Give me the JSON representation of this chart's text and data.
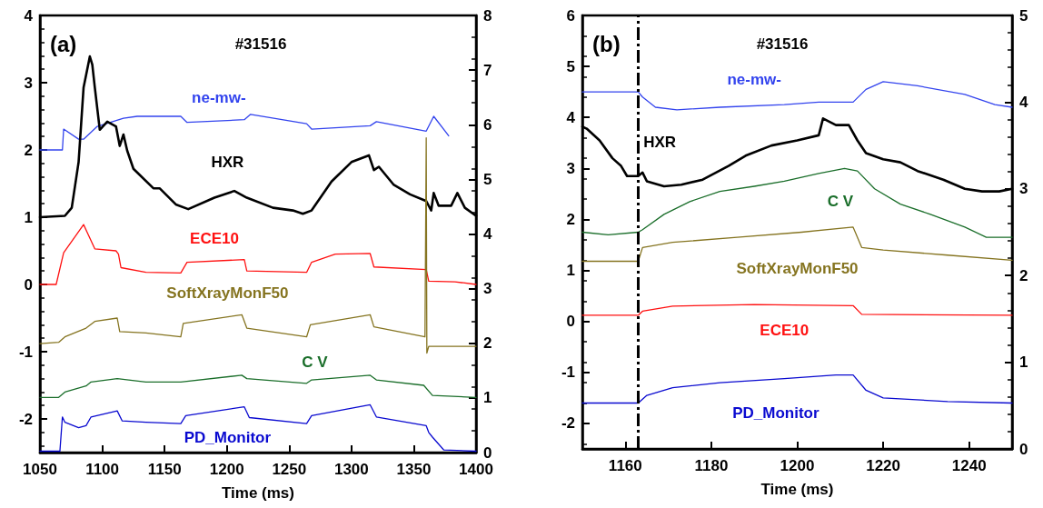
{
  "chart_data": [
    {
      "type": "line",
      "title": "(a)",
      "subtitle": "#31516",
      "xlabel": "Time (ms)",
      "xlim": [
        1050,
        1400
      ],
      "xticks": [
        1050,
        1100,
        1150,
        1200,
        1250,
        1300,
        1350,
        1400
      ],
      "ylim": [
        -2.5,
        4
      ],
      "yticks": [
        -2,
        -1,
        0,
        1,
        2,
        3,
        4
      ],
      "y2lim": [
        0,
        8
      ],
      "y2ticks": [
        0,
        1,
        2,
        3,
        4,
        5,
        6,
        7,
        8
      ],
      "grid": false,
      "legend": false,
      "marker": "none",
      "line_style": "solid",
      "series": [
        {
          "name": "ne-mw-",
          "color": "#3344ee",
          "x": [
            1050,
            1068,
            1069,
            1081,
            1085,
            1096,
            1117,
            1128,
            1163,
            1168,
            1214,
            1219,
            1264,
            1268,
            1315,
            1320,
            1360,
            1366,
            1378
          ],
          "values": [
            2.0,
            2.0,
            2.31,
            2.16,
            2.16,
            2.35,
            2.47,
            2.5,
            2.5,
            2.41,
            2.45,
            2.53,
            2.39,
            2.31,
            2.36,
            2.42,
            2.28,
            2.5,
            2.21
          ]
        },
        {
          "name": "HXR",
          "color": "#000000",
          "x": [
            1050,
            1070,
            1075.5,
            1081,
            1085,
            1090,
            1092,
            1094,
            1098,
            1104,
            1111,
            1114,
            1117,
            1120,
            1125,
            1141,
            1146,
            1159,
            1169,
            1190,
            1206,
            1216,
            1237,
            1253,
            1261,
            1268,
            1284,
            1300,
            1314,
            1318,
            1322,
            1334,
            1347,
            1360,
            1364,
            1366,
            1370,
            1380,
            1385,
            1391,
            1400
          ],
          "values": [
            1.0,
            1.02,
            1.14,
            1.82,
            2.93,
            3.39,
            3.27,
            2.93,
            2.3,
            2.42,
            2.35,
            2.06,
            2.23,
            1.99,
            1.72,
            1.43,
            1.43,
            1.19,
            1.12,
            1.29,
            1.39,
            1.29,
            1.14,
            1.1,
            1.05,
            1.1,
            1.53,
            1.82,
            1.92,
            1.7,
            1.75,
            1.48,
            1.34,
            1.24,
            1.1,
            1.36,
            1.17,
            1.17,
            1.36,
            1.14,
            1.02
          ]
        },
        {
          "name": "ECE10",
          "color": "#ff1010",
          "x": [
            1050,
            1063,
            1069,
            1085,
            1094,
            1111,
            1113,
            1115,
            1135,
            1163,
            1168,
            1214,
            1216,
            1264,
            1268,
            1287,
            1315,
            1318,
            1360,
            1362,
            1383,
            1400
          ],
          "values": [
            0,
            0,
            0.47,
            0.89,
            0.53,
            0.5,
            0.45,
            0.25,
            0.18,
            0.17,
            0.33,
            0.37,
            0.2,
            0.18,
            0.33,
            0.45,
            0.46,
            0.26,
            0.22,
            0.05,
            0.04,
            0
          ]
        },
        {
          "name": "SoftXrayMonF50",
          "color": "#857420",
          "x": [
            1050,
            1065,
            1070,
            1087,
            1094,
            1112,
            1114,
            1135,
            1163,
            1165,
            1212,
            1216,
            1264,
            1267,
            1315,
            1318,
            1359,
            1360,
            1360.5,
            1362,
            1400
          ],
          "values": [
            -0.88,
            -0.86,
            -0.78,
            -0.65,
            -0.55,
            -0.5,
            -0.7,
            -0.72,
            -0.78,
            -0.58,
            -0.45,
            -0.65,
            -0.78,
            -0.6,
            -0.45,
            -0.63,
            -0.78,
            2.18,
            -1.02,
            -0.92,
            -0.92
          ]
        },
        {
          "name": "C V",
          "color": "#1a6e2a",
          "x": [
            1050,
            1065,
            1070,
            1087,
            1091,
            1112,
            1135,
            1163,
            1212,
            1216,
            1264,
            1268,
            1315,
            1320,
            1358,
            1365,
            1400
          ],
          "values": [
            -1.68,
            -1.68,
            -1.6,
            -1.51,
            -1.45,
            -1.4,
            -1.45,
            -1.45,
            -1.35,
            -1.4,
            -1.47,
            -1.42,
            -1.35,
            -1.42,
            -1.5,
            -1.65,
            -1.68
          ]
        },
        {
          "name": "PD_Monitor",
          "color": "#0a0ad0",
          "x": [
            1050,
            1066,
            1068,
            1070,
            1081,
            1087,
            1091,
            1112,
            1116,
            1135,
            1163,
            1167,
            1214,
            1218,
            1264,
            1268,
            1315,
            1320,
            1360,
            1362,
            1365,
            1374,
            1400
          ],
          "values": [
            -2.48,
            -2.48,
            -1.97,
            -2.05,
            -2.13,
            -2.1,
            -1.97,
            -1.88,
            -2.03,
            -2.05,
            -2.07,
            -1.95,
            -1.82,
            -1.98,
            -2.07,
            -1.95,
            -1.79,
            -1.97,
            -2.1,
            -2.2,
            -2.27,
            -2.46,
            -2.48
          ]
        }
      ]
    },
    {
      "type": "line",
      "title": "(b)",
      "subtitle": "#31516",
      "xlabel": "Time (ms)",
      "xlim": [
        1150,
        1250
      ],
      "xticks": [
        1160,
        1180,
        1200,
        1220,
        1240
      ],
      "ylim": [
        -2.5,
        6
      ],
      "yticks": [
        -2,
        -1,
        0,
        1,
        2,
        3,
        4,
        5,
        6
      ],
      "y2lim": [
        0,
        5
      ],
      "y2ticks": [
        0,
        1,
        2,
        3,
        4,
        5
      ],
      "grid": false,
      "legend": false,
      "marker": "none",
      "line_style": "solid",
      "ref_lines": [
        {
          "axis": "x",
          "value": 1163,
          "color": "#000000",
          "line_style": "dashed"
        }
      ],
      "series": [
        {
          "name": "ne-mw-",
          "color": "#3344ee",
          "x": [
            1150,
            1163,
            1164,
            1167,
            1172,
            1182,
            1197,
            1205,
            1213,
            1216,
            1220,
            1228,
            1239,
            1246,
            1250
          ],
          "values": [
            4.5,
            4.5,
            4.4,
            4.2,
            4.15,
            4.2,
            4.25,
            4.3,
            4.3,
            4.55,
            4.7,
            4.62,
            4.45,
            4.25,
            4.2
          ]
        },
        {
          "name": "HXR",
          "color": "#000000",
          "x": [
            1150,
            1151,
            1154,
            1157,
            1159,
            1160.4,
            1163,
            1164,
            1165,
            1169,
            1173,
            1178,
            1184,
            1188,
            1194,
            1200,
            1205,
            1206,
            1209,
            1212,
            1214,
            1216,
            1220,
            1224,
            1228,
            1234,
            1239,
            1243,
            1247,
            1250
          ],
          "values": [
            3.82,
            3.78,
            3.55,
            3.2,
            3.05,
            2.85,
            2.85,
            2.92,
            2.75,
            2.65,
            2.68,
            2.78,
            3.05,
            3.25,
            3.45,
            3.55,
            3.65,
            3.98,
            3.85,
            3.85,
            3.55,
            3.3,
            3.18,
            3.12,
            2.95,
            2.78,
            2.6,
            2.55,
            2.55,
            2.6
          ]
        },
        {
          "name": "C V",
          "color": "#1a6e2a",
          "x": [
            1150,
            1156,
            1163,
            1164,
            1169,
            1175,
            1182,
            1190,
            1197,
            1205,
            1211,
            1214,
            1218,
            1224,
            1231,
            1239,
            1244,
            1250
          ],
          "values": [
            1.75,
            1.7,
            1.75,
            1.8,
            2.1,
            2.35,
            2.55,
            2.65,
            2.75,
            2.9,
            3.0,
            2.95,
            2.6,
            2.3,
            2.1,
            1.85,
            1.65,
            1.65
          ]
        },
        {
          "name": "SoftXrayMonF50",
          "color": "#857420",
          "x": [
            1150,
            1163,
            1164,
            1171,
            1186,
            1201,
            1213,
            1215,
            1220,
            1235,
            1250
          ],
          "values": [
            1.18,
            1.18,
            1.45,
            1.55,
            1.65,
            1.75,
            1.85,
            1.45,
            1.4,
            1.3,
            1.2
          ]
        },
        {
          "name": "ECE10",
          "color": "#ff1010",
          "x": [
            1150,
            1163,
            1164,
            1171,
            1190,
            1213,
            1215,
            1250
          ],
          "values": [
            0.12,
            0.12,
            0.2,
            0.3,
            0.33,
            0.31,
            0.14,
            0.12
          ]
        },
        {
          "name": "PD_Monitor",
          "color": "#0a0ad0",
          "x": [
            1150,
            1163,
            1165,
            1171,
            1182,
            1197,
            1209,
            1213,
            1216,
            1220,
            1235,
            1250
          ],
          "values": [
            -1.6,
            -1.6,
            -1.45,
            -1.3,
            -1.2,
            -1.12,
            -1.05,
            -1.05,
            -1.35,
            -1.5,
            -1.57,
            -1.6
          ]
        }
      ]
    }
  ]
}
